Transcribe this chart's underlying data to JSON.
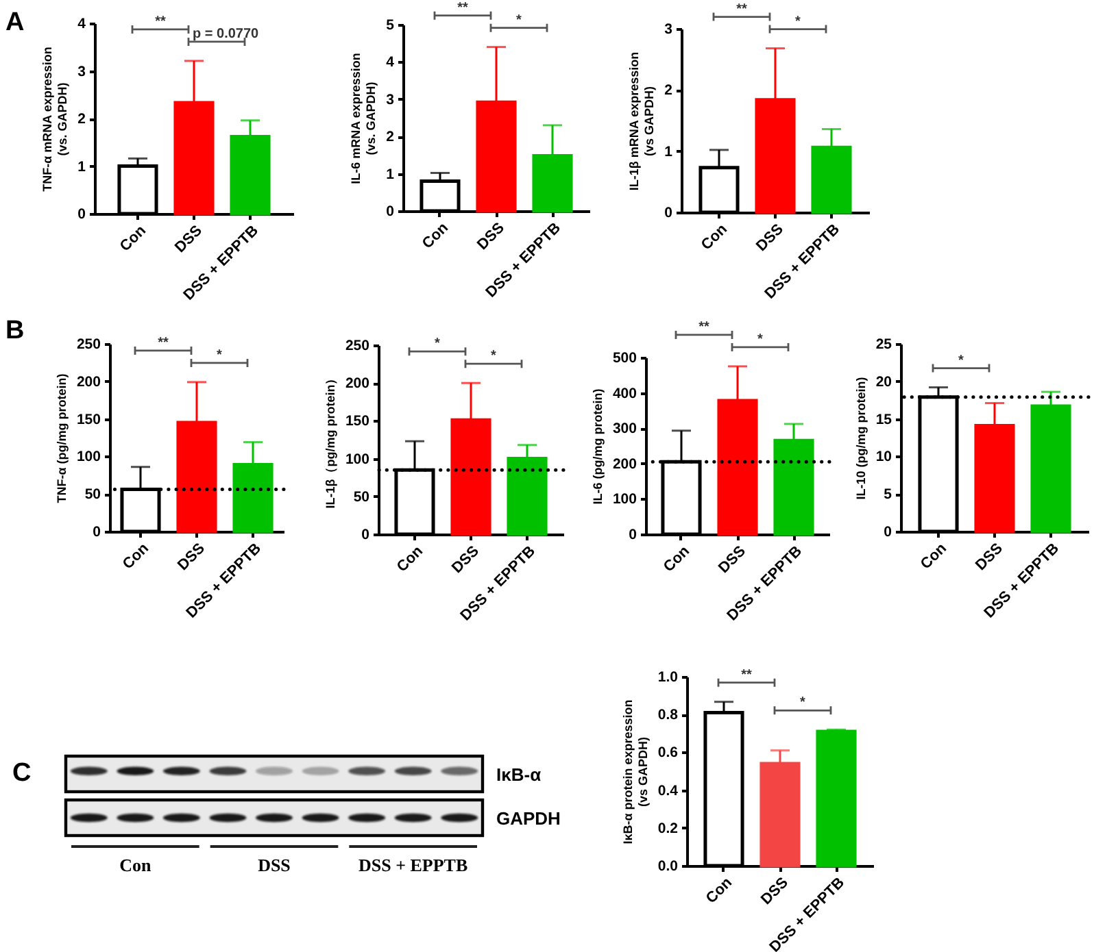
{
  "chart_data": [
    {
      "type": "bar",
      "title": "A",
      "ylabel": "TNF-α mRNA expression\n(vs. GAPDH)",
      "categories": [
        "Con",
        "DSS",
        "DSS + EPPTB"
      ],
      "values": [
        1.0,
        2.33,
        1.62
      ],
      "colors": [
        "#ffffff",
        "#ff0000",
        "#00c000"
      ],
      "errors": [
        [
          1.0,
          1.16
        ],
        [
          2.33,
          3.21
        ],
        [
          1.62,
          1.96
        ]
      ],
      "ylim": [
        0,
        4
      ],
      "yticks": [
        0,
        1,
        2,
        3,
        4
      ],
      "annotations": [
        "**",
        "p = 0.0770"
      ]
    },
    {
      "type": "bar",
      "ylabel": "IL-6 mRNA expression\n(vs. GAPDH)",
      "categories": [
        "Con",
        "DSS",
        "DSS + EPPTB"
      ],
      "values": [
        0.8,
        2.92,
        1.48
      ],
      "colors": [
        "#ffffff",
        "#ff0000",
        "#00c000"
      ],
      "errors": [
        [
          0.8,
          1.02
        ],
        [
          2.92,
          4.4
        ],
        [
          1.48,
          2.3
        ]
      ],
      "ylim": [
        0,
        5
      ],
      "yticks": [
        0,
        1,
        2,
        3,
        4,
        5
      ],
      "annotations": [
        "**",
        "*"
      ]
    },
    {
      "type": "bar",
      "ylabel": "IL-1β mRNA expression\n(vs GAPDH)",
      "categories": [
        "Con",
        "DSS",
        "DSS + EPPTB"
      ],
      "values": [
        0.73,
        1.84,
        1.06
      ],
      "colors": [
        "#ffffff",
        "#ff0000",
        "#00c000"
      ],
      "errors": [
        [
          0.73,
          1.02
        ],
        [
          1.84,
          2.68
        ],
        [
          1.06,
          1.36
        ]
      ],
      "ylim": [
        0,
        3
      ],
      "yticks": [
        0,
        1,
        2,
        3
      ],
      "annotations": [
        "**",
        "*"
      ]
    },
    {
      "type": "bar",
      "title": "B",
      "ylabel": "TNF-α (pg/mg protein)",
      "categories": [
        "Con",
        "DSS",
        "DSS + EPPTB"
      ],
      "values": [
        56,
        145,
        89
      ],
      "colors": [
        "#ffffff",
        "#ff0000",
        "#00c000"
      ],
      "errors": [
        [
          56,
          86
        ],
        [
          145,
          199
        ],
        [
          89,
          119
        ]
      ],
      "ylim": [
        0,
        250
      ],
      "yticks": [
        0,
        50,
        100,
        150,
        200,
        250
      ],
      "ref_lines": [
        {
          "axis": "y",
          "value": 56,
          "color": "#000000",
          "line_style": "dotted"
        }
      ],
      "annotations": [
        "**",
        "*"
      ]
    },
    {
      "type": "bar",
      "ylabel": "IL-1β（pg/mg protein）",
      "categories": [
        "Con",
        "DSS",
        "DSS + EPPTB"
      ],
      "values": [
        85,
        151,
        100
      ],
      "colors": [
        "#ffffff",
        "#ff0000",
        "#00c000"
      ],
      "errors": [
        [
          85,
          123
        ],
        [
          151,
          200
        ],
        [
          100,
          118
        ]
      ],
      "ylim": [
        0,
        250
      ],
      "yticks": [
        0,
        50,
        100,
        150,
        200,
        250
      ],
      "ref_lines": [
        {
          "axis": "y",
          "value": 85,
          "color": "#000000",
          "line_style": "dotted"
        }
      ],
      "annotations": [
        "*",
        "*"
      ]
    },
    {
      "type": "bar",
      "ylabel": "IL-6 (pg/mg protein)",
      "categories": [
        "Con",
        "DSS",
        "DSS + EPPTB"
      ],
      "values": [
        205,
        378,
        265
      ],
      "colors": [
        "#ffffff",
        "#ff0000",
        "#00c000"
      ],
      "errors": [
        [
          205,
          293
        ],
        [
          378,
          475
        ],
        [
          265,
          312
        ]
      ],
      "ylim": [
        0,
        500
      ],
      "yticks": [
        0,
        100,
        200,
        300,
        400,
        500
      ],
      "ref_lines": [
        {
          "axis": "y",
          "value": 205,
          "color": "#000000",
          "line_style": "dotted"
        }
      ],
      "annotations": [
        "**",
        "*"
      ]
    },
    {
      "type": "bar",
      "ylabel": "IL-10 (pg/mg protein)",
      "categories": [
        "Con",
        "DSS",
        "DSS + EPPTB"
      ],
      "values": [
        17.9,
        14.1,
        16.7
      ],
      "colors": [
        "#ffffff",
        "#ff0000",
        "#00c000"
      ],
      "errors": [
        [
          17.9,
          19.2
        ],
        [
          14.1,
          17.1
        ],
        [
          16.7,
          18.6
        ]
      ],
      "ylim": [
        0,
        25
      ],
      "yticks": [
        0,
        5,
        10,
        15,
        20,
        25
      ],
      "ref_lines": [
        {
          "axis": "y",
          "value": 17.9,
          "color": "#000000",
          "line_style": "dotted"
        }
      ],
      "annotations": [
        "*"
      ]
    },
    {
      "type": "other",
      "title": "C",
      "categories": [
        "Con",
        "DSS",
        "DSS + EPPTB"
      ],
      "y_categories": [
        "IκB-α",
        "GAPDH"
      ]
    },
    {
      "type": "bar",
      "ylabel": "IκB-α protein expression\n(vs GAPDH)",
      "categories": [
        "Con",
        "DSS",
        "DSS + EPPTB"
      ],
      "values": [
        0.81,
        0.54,
        0.71
      ],
      "colors": [
        "#ffffff",
        "#f44545",
        "#00c000"
      ],
      "errors": [
        [
          0.81,
          0.867
        ],
        [
          0.54,
          0.61
        ],
        [
          0.71,
          0.72
        ]
      ],
      "ylim": [
        0,
        1
      ],
      "yticks": [
        {
          "value": 0,
          "label": "0.0"
        },
        {
          "value": 0.2,
          "label": "0.2"
        },
        {
          "value": 0.4,
          "label": "0.4"
        },
        {
          "value": 0.6,
          "label": "0.6"
        },
        {
          "value": 0.8,
          "label": "0.8"
        },
        {
          "value": 1,
          "label": "1.0"
        }
      ],
      "annotations": [
        "**",
        "*"
      ]
    }
  ]
}
